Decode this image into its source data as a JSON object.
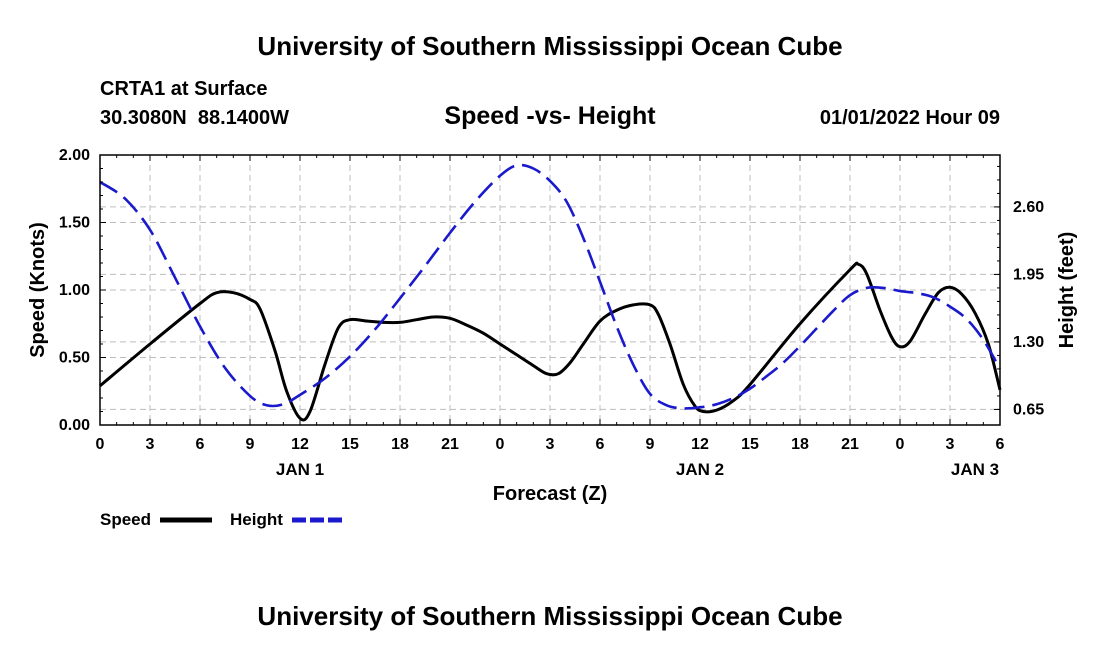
{
  "page": {
    "header": "University of Southern Mississippi Ocean Cube",
    "footer": "University of Southern Mississippi Ocean Cube"
  },
  "chart_data": {
    "type": "line",
    "title": "Speed -vs- Height",
    "station": "CRTA1 at Surface",
    "location": "30.3080N  88.1400W",
    "run_time": "01/01/2022 Hour 09",
    "xlabel": "Forecast (Z)",
    "ylabel_left": "Speed (Knots)",
    "ylabel_right": "Height (feet)",
    "x_range_hours": [
      0,
      54
    ],
    "x_ticks": [
      {
        "h": 0,
        "label": "0"
      },
      {
        "h": 3,
        "label": "3"
      },
      {
        "h": 6,
        "label": "6"
      },
      {
        "h": 9,
        "label": "9"
      },
      {
        "h": 12,
        "label": "12"
      },
      {
        "h": 15,
        "label": "15"
      },
      {
        "h": 18,
        "label": "18"
      },
      {
        "h": 21,
        "label": "21"
      },
      {
        "h": 24,
        "label": "0"
      },
      {
        "h": 27,
        "label": "3"
      },
      {
        "h": 30,
        "label": "6"
      },
      {
        "h": 33,
        "label": "9"
      },
      {
        "h": 36,
        "label": "12"
      },
      {
        "h": 39,
        "label": "15"
      },
      {
        "h": 42,
        "label": "18"
      },
      {
        "h": 45,
        "label": "21"
      },
      {
        "h": 48,
        "label": "0"
      },
      {
        "h": 51,
        "label": "3"
      },
      {
        "h": 54,
        "label": "6"
      }
    ],
    "date_labels": [
      {
        "h": 12,
        "label": "JAN 1"
      },
      {
        "h": 36,
        "label": "JAN 2"
      },
      {
        "h": 52.5,
        "label": "JAN 3"
      }
    ],
    "y_left": {
      "range": [
        0,
        2
      ],
      "ticks": [
        {
          "v": 0,
          "label": "0.00"
        },
        {
          "v": 0.5,
          "label": "0.50"
        },
        {
          "v": 1,
          "label": "1.00"
        },
        {
          "v": 1.5,
          "label": "1.50"
        },
        {
          "v": 2,
          "label": "2.00"
        }
      ]
    },
    "y_right": {
      "range": [
        0.5,
        3.1
      ],
      "ticks": [
        {
          "v": 0.65,
          "label": "0.65"
        },
        {
          "v": 1.3,
          "label": "1.30"
        },
        {
          "v": 1.95,
          "label": "1.95"
        },
        {
          "v": 2.6,
          "label": "2.60"
        }
      ]
    },
    "grid": true,
    "legend": [
      {
        "label": "Speed",
        "color": "#000000",
        "dash": "solid"
      },
      {
        "label": "Height",
        "color": "#1a1acc",
        "dash": "dashed"
      }
    ],
    "series": [
      {
        "name": "Speed",
        "axis": "left",
        "color": "#000000",
        "points": [
          [
            0,
            0.29
          ],
          [
            3,
            0.6
          ],
          [
            6,
            0.9
          ],
          [
            7,
            0.98
          ],
          [
            8,
            0.98
          ],
          [
            9,
            0.93
          ],
          [
            9.6,
            0.86
          ],
          [
            10.5,
            0.55
          ],
          [
            11.2,
            0.25
          ],
          [
            12,
            0.05
          ],
          [
            12.6,
            0.1
          ],
          [
            13.5,
            0.45
          ],
          [
            14.3,
            0.72
          ],
          [
            15,
            0.78
          ],
          [
            16,
            0.77
          ],
          [
            17,
            0.76
          ],
          [
            18,
            0.76
          ],
          [
            19,
            0.78
          ],
          [
            20,
            0.8
          ],
          [
            21,
            0.79
          ],
          [
            22,
            0.74
          ],
          [
            23,
            0.68
          ],
          [
            24,
            0.6
          ],
          [
            25,
            0.52
          ],
          [
            26,
            0.44
          ],
          [
            26.8,
            0.38
          ],
          [
            27.5,
            0.38
          ],
          [
            28.2,
            0.46
          ],
          [
            29,
            0.6
          ],
          [
            30,
            0.77
          ],
          [
            31,
            0.85
          ],
          [
            32,
            0.89
          ],
          [
            33,
            0.89
          ],
          [
            33.5,
            0.82
          ],
          [
            34.2,
            0.6
          ],
          [
            35,
            0.3
          ],
          [
            35.7,
            0.14
          ],
          [
            36.2,
            0.1
          ],
          [
            37,
            0.11
          ],
          [
            38,
            0.18
          ],
          [
            39,
            0.3
          ],
          [
            42,
            0.75
          ],
          [
            45,
            1.15
          ],
          [
            45.5,
            1.19
          ],
          [
            46,
            1.12
          ],
          [
            46.8,
            0.85
          ],
          [
            47.5,
            0.65
          ],
          [
            48,
            0.58
          ],
          [
            48.6,
            0.62
          ],
          [
            49.5,
            0.82
          ],
          [
            50.3,
            0.98
          ],
          [
            51,
            1.02
          ],
          [
            51.7,
            0.97
          ],
          [
            52.5,
            0.83
          ],
          [
            53.3,
            0.6
          ],
          [
            54,
            0.26
          ]
        ]
      },
      {
        "name": "Height",
        "axis": "right",
        "color": "#1a1acc",
        "points": [
          [
            0,
            2.84
          ],
          [
            1.5,
            2.68
          ],
          [
            3,
            2.38
          ],
          [
            4.5,
            1.92
          ],
          [
            6,
            1.45
          ],
          [
            7.5,
            1.05
          ],
          [
            9,
            0.78
          ],
          [
            10,
            0.69
          ],
          [
            11,
            0.7
          ],
          [
            12,
            0.79
          ],
          [
            13.5,
            0.95
          ],
          [
            15,
            1.16
          ],
          [
            16.5,
            1.42
          ],
          [
            18,
            1.72
          ],
          [
            19.5,
            2.03
          ],
          [
            21,
            2.35
          ],
          [
            22.5,
            2.65
          ],
          [
            24,
            2.9
          ],
          [
            25,
            3.0
          ],
          [
            26,
            2.97
          ],
          [
            27,
            2.85
          ],
          [
            28,
            2.65
          ],
          [
            29,
            2.3
          ],
          [
            30,
            1.88
          ],
          [
            31,
            1.45
          ],
          [
            32,
            1.08
          ],
          [
            33,
            0.8
          ],
          [
            34,
            0.69
          ],
          [
            35,
            0.66
          ],
          [
            36,
            0.67
          ],
          [
            37,
            0.7
          ],
          [
            38,
            0.76
          ],
          [
            39,
            0.85
          ],
          [
            40,
            0.97
          ],
          [
            41,
            1.1
          ],
          [
            42,
            1.26
          ],
          [
            43,
            1.43
          ],
          [
            44,
            1.6
          ],
          [
            45,
            1.75
          ],
          [
            46,
            1.82
          ],
          [
            47,
            1.82
          ],
          [
            48,
            1.79
          ],
          [
            49,
            1.77
          ],
          [
            50,
            1.73
          ],
          [
            51,
            1.64
          ],
          [
            52,
            1.52
          ],
          [
            53,
            1.32
          ],
          [
            54,
            1.04
          ]
        ]
      }
    ]
  }
}
